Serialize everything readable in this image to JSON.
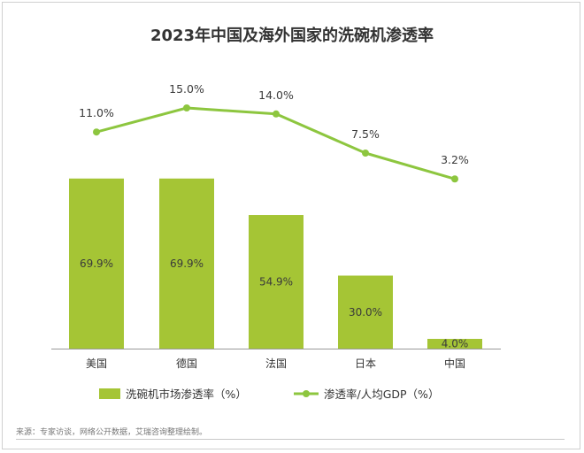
{
  "chart_data": {
    "type": "bar",
    "title": "2023年中国及海外国家的洗碗机渗透率",
    "categories": [
      "美国",
      "德国",
      "法国",
      "日本",
      "中国"
    ],
    "series": [
      {
        "name": "洗碗机市场渗透率（%）",
        "kind": "bar",
        "values": [
          69.9,
          69.9,
          54.9,
          30.0,
          4.0
        ],
        "labels": [
          "69.9%",
          "69.9%",
          "54.9%",
          "30.0%",
          "4.0%"
        ],
        "color": "#a5c535"
      },
      {
        "name": "渗透率/人均GDP（%）",
        "kind": "line",
        "values": [
          11.0,
          15.0,
          14.0,
          7.5,
          3.2
        ],
        "labels": [
          "11.0%",
          "15.0%",
          "14.0%",
          "7.5%",
          "3.2%"
        ],
        "color": "#8dc63f"
      }
    ],
    "grid": false,
    "legend": "bottom"
  },
  "source_note": "来源：专家访谈，网络公开数据，艾瑞咨询整理绘制。"
}
